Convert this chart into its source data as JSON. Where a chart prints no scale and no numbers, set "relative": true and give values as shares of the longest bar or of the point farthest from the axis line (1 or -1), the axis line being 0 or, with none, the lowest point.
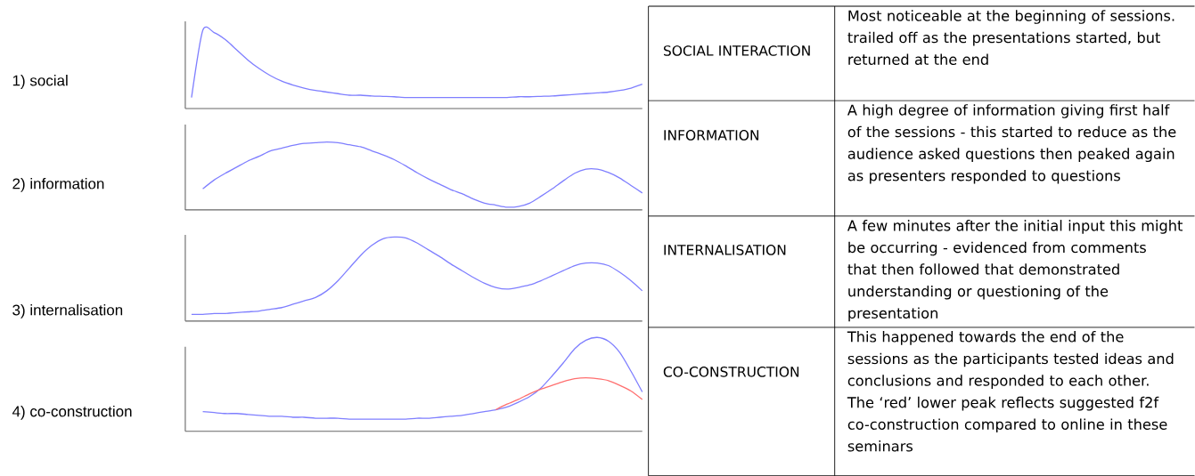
{
  "chart_data": [
    {
      "type": "line",
      "relative": true,
      "ylabel": "1) social",
      "categories": [
        null,
        null,
        null,
        null,
        null,
        null,
        null,
        null,
        null,
        null,
        null,
        null,
        null,
        null,
        null,
        null,
        null,
        null,
        null,
        null,
        null,
        null,
        null,
        null,
        null,
        null,
        null,
        null,
        null,
        null,
        null,
        null,
        null,
        null,
        null,
        null,
        null,
        null,
        null,
        null,
        null
      ],
      "series": [
        {
          "color": "#7f7fff",
          "values": [
            0.14,
            1.0,
            0.97,
            0.88,
            0.75,
            0.62,
            0.51,
            0.42,
            0.35,
            0.3,
            0.26,
            0.23,
            0.21,
            0.19,
            0.17,
            0.17,
            0.16,
            0.155,
            0.15,
            0.14,
            0.14,
            0.14,
            0.14,
            0.14,
            0.14,
            0.14,
            0.14,
            0.14,
            0.14,
            0.15,
            0.15,
            0.155,
            0.16,
            0.17,
            0.18,
            0.19,
            0.2,
            0.21,
            0.23,
            0.26,
            0.31
          ]
        }
      ]
    },
    {
      "type": "line",
      "relative": true,
      "ylabel": "2) information",
      "categories": [
        null,
        null,
        null,
        null,
        null,
        null,
        null,
        null,
        null,
        null,
        null,
        null,
        null,
        null,
        null,
        null,
        null,
        null,
        null,
        null,
        null,
        null,
        null,
        null,
        null,
        null,
        null,
        null,
        null,
        null,
        null,
        null,
        null,
        null,
        null,
        null,
        null,
        null,
        null,
        null,
        null
      ],
      "series": [
        {
          "color": "#7f7fff",
          "values": [
            null,
            0.31,
            0.44,
            0.54,
            0.63,
            0.72,
            0.79,
            0.87,
            0.91,
            0.95,
            0.98,
            0.99,
            1.0,
            0.99,
            0.96,
            0.93,
            0.87,
            0.81,
            0.74,
            0.65,
            0.55,
            0.46,
            0.38,
            0.3,
            0.24,
            0.16,
            0.1,
            0.07,
            0.04,
            0.05,
            0.1,
            0.2,
            0.31,
            0.43,
            0.54,
            0.6,
            0.6,
            0.55,
            0.47,
            0.36,
            0.25
          ]
        }
      ]
    },
    {
      "type": "line",
      "relative": true,
      "ylabel": "3) internalisation",
      "categories": [
        null,
        null,
        null,
        null,
        null,
        null,
        null,
        null,
        null,
        null,
        null,
        null,
        null,
        null,
        null,
        null,
        null,
        null,
        null,
        null,
        null,
        null,
        null,
        null,
        null,
        null,
        null,
        null,
        null,
        null,
        null,
        null,
        null,
        null,
        null,
        null,
        null,
        null,
        null,
        null,
        null
      ],
      "series": [
        {
          "color": "#7f7fff",
          "values": [
            0.08,
            0.08,
            0.09,
            0.09,
            0.1,
            0.11,
            0.12,
            0.14,
            0.16,
            0.2,
            0.24,
            0.28,
            0.36,
            0.48,
            0.63,
            0.78,
            0.9,
            0.98,
            1.0,
            0.99,
            0.93,
            0.85,
            0.77,
            0.68,
            0.6,
            0.52,
            0.45,
            0.4,
            0.38,
            0.4,
            0.43,
            0.48,
            0.54,
            0.6,
            0.66,
            0.69,
            0.69,
            0.66,
            0.58,
            0.48,
            0.36
          ]
        }
      ]
    },
    {
      "type": "line",
      "relative": true,
      "ylabel": "4) co-construction",
      "categories": [
        null,
        null,
        null,
        null,
        null,
        null,
        null,
        null,
        null,
        null,
        null,
        null,
        null,
        null,
        null,
        null,
        null,
        null,
        null,
        null,
        null,
        null,
        null,
        null,
        null,
        null,
        null,
        null,
        null,
        null,
        null,
        null,
        null,
        null,
        null,
        null,
        null,
        null,
        null,
        null,
        null
      ],
      "series": [
        {
          "color": "#7f7fff",
          "values": [
            null,
            0.21,
            0.2,
            0.19,
            0.19,
            0.18,
            0.17,
            0.16,
            0.16,
            0.15,
            0.15,
            0.14,
            0.14,
            0.14,
            0.13,
            0.13,
            0.13,
            0.13,
            0.13,
            0.13,
            0.14,
            0.14,
            0.15,
            0.16,
            0.17,
            0.19,
            0.21,
            0.23,
            0.26,
            0.31,
            0.37,
            0.46,
            0.59,
            0.73,
            0.88,
            0.97,
            1.0,
            0.96,
            0.84,
            0.64,
            0.42
          ]
        },
        {
          "color": "#ff6f6f",
          "values": [
            null,
            null,
            null,
            null,
            null,
            null,
            null,
            null,
            null,
            null,
            null,
            null,
            null,
            null,
            null,
            null,
            null,
            null,
            null,
            null,
            null,
            null,
            null,
            null,
            null,
            null,
            null,
            0.23,
            0.29,
            0.34,
            0.4,
            0.45,
            0.49,
            0.53,
            0.56,
            0.57,
            0.56,
            0.54,
            0.49,
            0.43,
            0.34
          ]
        }
      ]
    },
    {
      "type": "other",
      "annotations": [
        "SOCIAL INTERACTION",
        "Most noticeable at the beginning of sessions. trailed off as the presentations started, but returned at the end",
        "INFORMATION",
        "A high degree of information giving first half of the sessions - this started to reduce as the audience asked questions then peaked again as presenters responded to questions",
        "INTERNALISATION",
        "A few minutes after the initial input this might be occurring - evidenced from comments that then followed that demonstrated understanding or questioning of the presentation",
        "CO-CONSTRUCTION",
        "This happened towards the end of the sessions as the participants tested ideas and conclusions and responded to each other. The ‘red’ lower peak reflects suggested f2f co-construction compared to online in these seminars"
      ]
    }
  ]
}
